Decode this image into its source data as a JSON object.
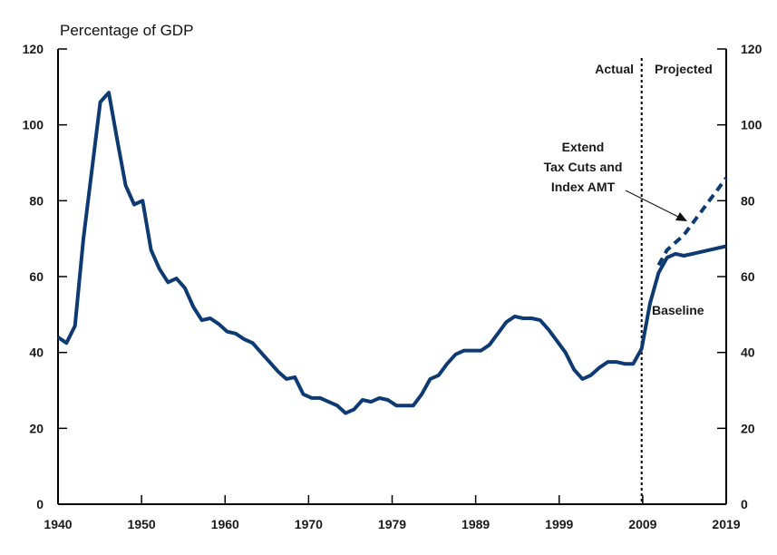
{
  "chart_data": {
    "type": "line",
    "title": "Percentage of GDP",
    "xlabel": "",
    "ylabel": "Percentage of GDP",
    "xlim": [
      1940,
      2019
    ],
    "ylim": [
      0,
      120
    ],
    "yticks": [
      0,
      20,
      40,
      60,
      80,
      100,
      120
    ],
    "xtick_labels": [
      "1940",
      "1950",
      "1960",
      "1970",
      "1979",
      "1989",
      "1999",
      "2009",
      "2019"
    ],
    "grid": false,
    "divider_year": 2009,
    "region_labels": {
      "left": "Actual",
      "right": "Projected"
    },
    "annotations": {
      "extended": [
        "Extend",
        "Tax Cuts and",
        "Index AMT"
      ],
      "baseline": "Baseline"
    },
    "colors": {
      "line": "#0d3a73",
      "axis": "#000000"
    },
    "series": [
      {
        "name": "Baseline",
        "style": "solid",
        "x": [
          1940,
          1941,
          1942,
          1943,
          1944,
          1945,
          1946,
          1947,
          1948,
          1949,
          1950,
          1951,
          1952,
          1953,
          1954,
          1955,
          1956,
          1957,
          1958,
          1959,
          1960,
          1961,
          1962,
          1963,
          1964,
          1965,
          1966,
          1967,
          1968,
          1969,
          1970,
          1971,
          1972,
          1973,
          1974,
          1975,
          1976,
          1977,
          1978,
          1979,
          1980,
          1981,
          1982,
          1983,
          1984,
          1985,
          1986,
          1987,
          1988,
          1989,
          1990,
          1991,
          1992,
          1993,
          1994,
          1995,
          1996,
          1997,
          1998,
          1999,
          2000,
          2001,
          2002,
          2003,
          2004,
          2005,
          2006,
          2007,
          2008,
          2009,
          2010,
          2011,
          2012,
          2013,
          2014,
          2015,
          2016,
          2017,
          2018,
          2019
        ],
        "values": [
          44,
          42.5,
          47,
          70,
          88,
          106,
          108.5,
          96,
          84,
          79,
          80,
          67,
          62,
          58.5,
          59.5,
          57,
          52,
          48.5,
          49,
          47.5,
          45.5,
          45,
          43.5,
          42.5,
          40,
          37.5,
          35,
          33,
          33.5,
          29,
          28,
          28,
          27,
          26,
          24,
          25,
          27.5,
          27,
          28,
          27.5,
          26,
          26,
          26,
          29,
          33,
          34,
          37,
          39.5,
          40.5,
          40.5,
          40.5,
          42,
          45,
          48,
          49.5,
          49,
          49,
          48.5,
          46,
          43,
          40,
          35.5,
          33,
          34,
          36,
          37.5,
          37.5,
          37,
          37,
          41,
          53,
          61,
          65,
          66,
          65.5,
          66,
          66.5,
          67,
          67.5,
          68
        ]
      },
      {
        "name": "Extend Tax Cuts and Index AMT",
        "style": "dashed",
        "x": [
          2011,
          2012,
          2013,
          2014,
          2015,
          2016,
          2017,
          2018,
          2019
        ],
        "values": [
          63,
          67,
          69,
          71,
          74,
          77,
          80,
          83,
          86
        ]
      }
    ]
  }
}
